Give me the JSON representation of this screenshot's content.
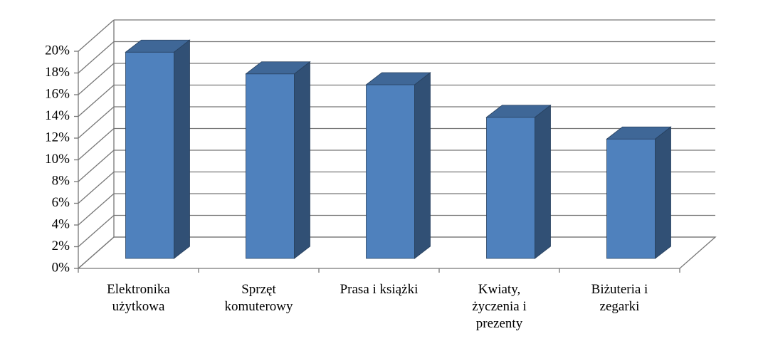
{
  "chart_data": {
    "type": "bar3d",
    "categories": [
      "Elektronika użytkowa",
      "Sprzęt komuterowy",
      "Prasa i książki",
      "Kwiaty, życzenia i prezenty",
      "Biżuteria i zegarki"
    ],
    "values": [
      19,
      17,
      16,
      13,
      11
    ],
    "color": "#4f81bd",
    "ylim": [
      0,
      20
    ],
    "yticks": [
      {
        "value": 0,
        "label": "0%"
      },
      {
        "value": 2,
        "label": "2%"
      },
      {
        "value": 4,
        "label": "4%"
      },
      {
        "value": 6,
        "label": "6%"
      },
      {
        "value": 8,
        "label": "8%"
      },
      {
        "value": 10,
        "label": "10%"
      },
      {
        "value": 12,
        "label": "12%"
      },
      {
        "value": 14,
        "label": "14%"
      },
      {
        "value": 16,
        "label": "16%"
      },
      {
        "value": 18,
        "label": "18%"
      },
      {
        "value": 20,
        "label": "20%"
      }
    ],
    "grid": true
  }
}
